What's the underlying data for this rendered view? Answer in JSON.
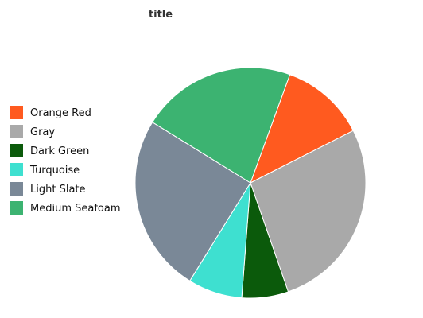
{
  "chart_data": {
    "type": "pie",
    "title": "title",
    "legend_position": "left",
    "slices": [
      {
        "label": "Orange Red",
        "value": 11,
        "color": "#ff5a1f"
      },
      {
        "label": "Gray",
        "value": 25,
        "color": "#a9a9a9"
      },
      {
        "label": "Dark Green",
        "value": 6,
        "color": "#0b5a0b"
      },
      {
        "label": "Turquoise",
        "value": 7,
        "color": "#3ee0d0"
      },
      {
        "label": "Light Slate",
        "value": 23,
        "color": "#7a8897"
      },
      {
        "label": "Medium Seafoam",
        "value": 20,
        "color": "#3cb371"
      }
    ]
  }
}
